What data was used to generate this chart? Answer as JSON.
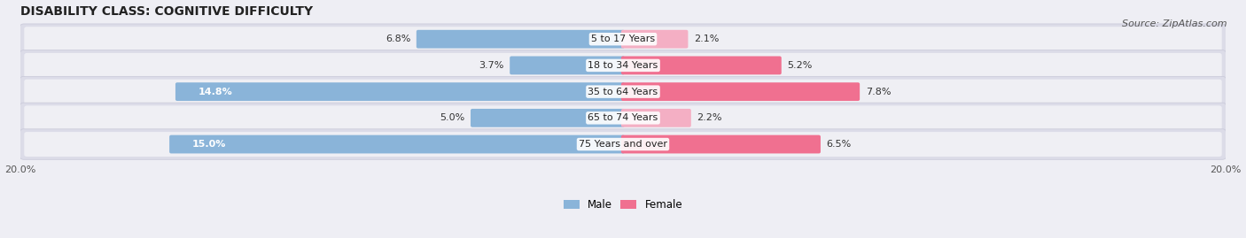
{
  "title": "DISABILITY CLASS: COGNITIVE DIFFICULTY",
  "source": "Source: ZipAtlas.com",
  "categories": [
    "5 to 17 Years",
    "18 to 34 Years",
    "35 to 64 Years",
    "65 to 74 Years",
    "75 Years and over"
  ],
  "male_values": [
    6.8,
    3.7,
    14.8,
    5.0,
    15.0
  ],
  "female_values": [
    2.1,
    5.2,
    7.8,
    2.2,
    6.5
  ],
  "male_color": "#8ab4d9",
  "female_color_large": "#f07090",
  "female_color_small": "#f4afc4",
  "male_label": "Male",
  "female_label": "Female",
  "xlim": 20.0,
  "bg_color": "#eeeef4",
  "row_bg_color": "#e4e4ec",
  "title_fontsize": 10,
  "label_fontsize": 8,
  "tick_fontsize": 8,
  "source_fontsize": 8
}
